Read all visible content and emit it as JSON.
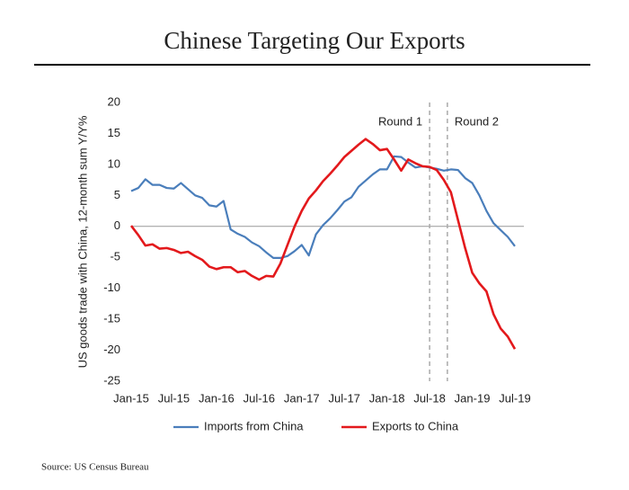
{
  "chart_data": {
    "type": "line",
    "title": "Chinese Targeting Our Exports",
    "ylabel": "US goods trade with China, 12-month sum Y/Y%",
    "source": "Source: US Census Bureau",
    "categories": [
      "Jan-15",
      null,
      null,
      null,
      null,
      null,
      "Jul-15",
      null,
      null,
      null,
      null,
      null,
      "Jan-16",
      null,
      null,
      null,
      null,
      null,
      "Jul-16",
      null,
      null,
      null,
      null,
      null,
      "Jan-17",
      null,
      null,
      null,
      null,
      null,
      "Jul-17",
      null,
      null,
      null,
      null,
      null,
      "Jan-18",
      null,
      null,
      null,
      null,
      null,
      "Jul-18",
      null,
      null,
      null,
      null,
      null,
      "Jan-19",
      null,
      null,
      null,
      null,
      null,
      "Jul-19"
    ],
    "series": [
      {
        "name": "Imports from China",
        "color": "#4a7ebb",
        "values": [
          5.7,
          6.2,
          7.6,
          6.7,
          6.7,
          6.2,
          6.1,
          7.0,
          6.0,
          5.0,
          4.6,
          3.4,
          3.2,
          4.1,
          -0.5,
          -1.2,
          -1.7,
          -2.6,
          -3.2,
          -4.2,
          -5.1,
          -5.1,
          -4.8,
          -4.0,
          -3.0,
          -4.7,
          -1.3,
          0.2,
          1.3,
          2.6,
          4.0,
          4.7,
          6.4,
          7.4,
          8.4,
          9.2,
          9.2,
          11.3,
          11.2,
          10.3,
          9.5,
          9.7,
          9.5,
          9.3,
          9.0,
          9.2,
          9.1,
          7.8,
          7.0,
          5.0,
          2.5,
          0.5,
          -0.6,
          -1.7,
          -3.2
        ]
      },
      {
        "name": "Exports to China",
        "color": "#e3191c",
        "values": [
          0.1,
          -1.4,
          -3.1,
          -2.9,
          -3.6,
          -3.5,
          -3.8,
          -4.3,
          -4.1,
          -4.8,
          -5.4,
          -6.5,
          -6.9,
          -6.6,
          -6.6,
          -7.4,
          -7.2,
          -8.0,
          -8.6,
          -8.0,
          -8.1,
          -6.0,
          -3.0,
          0.0,
          2.5,
          4.5,
          5.8,
          7.3,
          8.5,
          9.8,
          11.2,
          12.2,
          13.2,
          14.1,
          13.3,
          12.3,
          12.5,
          10.8,
          9.0,
          10.8,
          10.2,
          9.7,
          9.6,
          9.1,
          7.5,
          5.5,
          1.0,
          -3.5,
          -7.5,
          -9.2,
          -10.5,
          -14.2,
          -16.5,
          -17.8,
          -19.8
        ]
      }
    ],
    "annotations": [
      {
        "text": "Round 1",
        "x": 42
      },
      {
        "text": "Round 2",
        "x": 44.5
      }
    ],
    "ylim": [
      -25,
      20
    ],
    "yticks": [
      -25,
      -20,
      -15,
      -10,
      -5,
      0,
      5,
      10,
      15,
      20
    ],
    "legend": "bottom"
  }
}
